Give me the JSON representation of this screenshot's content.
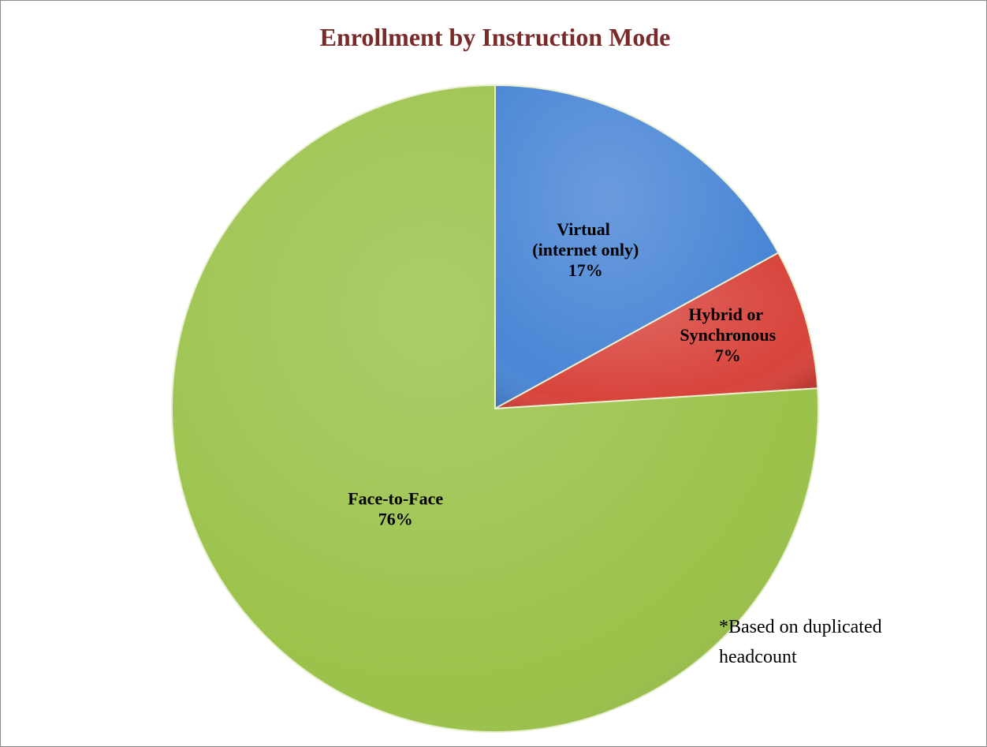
{
  "chart_data": {
    "type": "pie",
    "title": "Enrollment by Instruction Mode",
    "categories": [
      "Virtual (internet only)",
      "Hybrid or Synchronous",
      "Face-to-Face"
    ],
    "values": [
      17,
      7,
      76
    ],
    "value_labels": [
      "17%",
      "7%",
      "76%"
    ],
    "colors": [
      "#4a86d6",
      "#d8443c",
      "#9bc24a"
    ],
    "annotation": "*Based on duplicated headcount"
  }
}
